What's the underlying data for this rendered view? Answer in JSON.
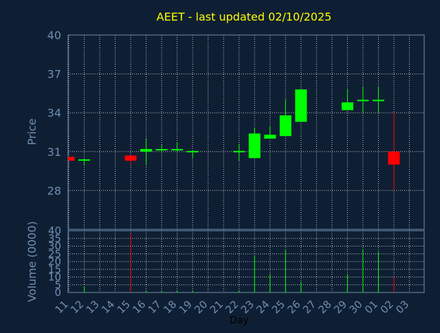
{
  "chart_data": {
    "type": "candlestick",
    "title": "AEET - last updated 02/10/2025",
    "xlabel": "Day",
    "price_panel": {
      "ylabel": "Price",
      "ylim": [
        25,
        40
      ],
      "yticks": [
        28,
        31,
        34,
        37,
        40
      ],
      "grid": true
    },
    "volume_panel": {
      "ylabel": "Volume (0000)",
      "ylim": [
        0,
        40
      ],
      "yticks": [
        0,
        5,
        10,
        15,
        20,
        25,
        30,
        35,
        40
      ],
      "grid": true
    },
    "x_ticks": [
      "11",
      "12",
      "13",
      "14",
      "15",
      "16",
      "17",
      "18",
      "19",
      "20",
      "21",
      "22",
      "23",
      "24",
      "25",
      "26",
      "27",
      "28",
      "29",
      "30",
      "01",
      "02",
      "03"
    ],
    "candles": [
      {
        "x": "11",
        "open": 30.6,
        "high": 30.6,
        "low": 30.3,
        "close": 30.3,
        "volume": 0.5
      },
      {
        "x": "12",
        "open": 30.35,
        "high": 30.4,
        "low": 30.0,
        "close": 30.4,
        "volume": 4
      },
      {
        "x": "15",
        "open": 30.7,
        "high": 30.7,
        "low": 30.0,
        "close": 30.3,
        "volume": 38
      },
      {
        "x": "16",
        "open": 31.0,
        "high": 32.0,
        "low": 30.0,
        "close": 31.2,
        "volume": 1
      },
      {
        "x": "17",
        "open": 31.1,
        "high": 31.5,
        "low": 31.0,
        "close": 31.2,
        "volume": 1
      },
      {
        "x": "18",
        "open": 31.1,
        "high": 31.7,
        "low": 31.0,
        "close": 31.2,
        "volume": 1
      },
      {
        "x": "19",
        "open": 30.95,
        "high": 31.0,
        "low": 30.5,
        "close": 31.05,
        "volume": 1
      },
      {
        "x": "22",
        "open": 30.95,
        "high": 31.6,
        "low": 30.3,
        "close": 31.05,
        "volume": 1
      },
      {
        "x": "23",
        "open": 30.5,
        "high": 32.8,
        "low": 30.5,
        "close": 32.4,
        "volume": 24
      },
      {
        "x": "24",
        "open": 32.0,
        "high": 33.0,
        "low": 32.0,
        "close": 32.3,
        "volume": 12
      },
      {
        "x": "25",
        "open": 32.2,
        "high": 35.0,
        "low": 32.2,
        "close": 33.8,
        "volume": 28
      },
      {
        "x": "26",
        "open": 33.3,
        "high": 35.8,
        "low": 33.3,
        "close": 35.8,
        "volume": 7
      },
      {
        "x": "29",
        "open": 34.2,
        "high": 35.8,
        "low": 34.2,
        "close": 34.8,
        "volume": 12
      },
      {
        "x": "30",
        "open": 34.9,
        "high": 36.0,
        "low": 34.0,
        "close": 35.0,
        "volume": 28
      },
      {
        "x": "01",
        "open": 34.9,
        "high": 36.0,
        "low": 34.0,
        "close": 35.0,
        "volume": 26
      },
      {
        "x": "02",
        "open": 31.0,
        "high": 34.0,
        "low": 28.0,
        "close": 30.0,
        "volume": 10
      }
    ],
    "colors": {
      "background": "#0f1f33",
      "up": "#00ff00",
      "down": "#ff0000",
      "title": "#ffff00",
      "axis_text": "#6f8fb2",
      "grid": "#ffffff",
      "frame": "#6f8fb2"
    }
  }
}
